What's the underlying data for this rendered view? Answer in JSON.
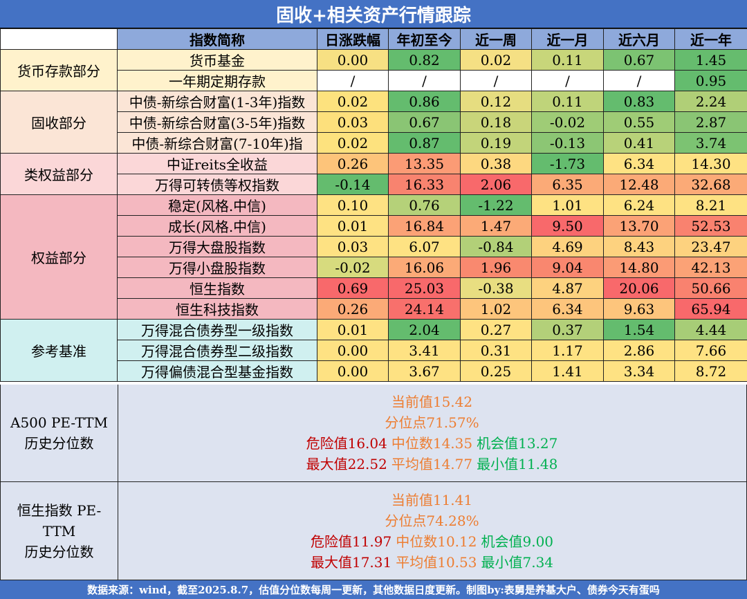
{
  "title": "固收+相关资产行情跟踪",
  "headers": [
    "",
    "指数简称",
    "日涨跌幅",
    "年初至今",
    "近一周",
    "近一月",
    "近六月",
    "近一年"
  ],
  "groups": [
    {
      "category": "货币存款部分",
      "category_bg": "#fff2cc",
      "name_bg": "#fff2cc",
      "rows": [
        {
          "name": "货币基金",
          "values": [
            "0.00",
            "0.82",
            "0.02",
            "0.11",
            "0.67",
            "1.45"
          ],
          "colors": [
            "#f7e083",
            "#64bc6e",
            "#f5e084",
            "#c8d67a",
            "#7cc372",
            "#66bc6e"
          ]
        },
        {
          "name": "一年期定期存款",
          "values": [
            "/",
            "/",
            "/",
            "/",
            "/",
            "0.95"
          ],
          "colors": [
            "#ffffff",
            "#ffffff",
            "#ffffff",
            "#ffffff",
            "#ffffff",
            "#64bc6e"
          ]
        }
      ]
    },
    {
      "category": "固收部分",
      "category_bg": "#fbe5d6",
      "name_bg": "#fbe5d6",
      "rows": [
        {
          "name": "中债-新综合财富(1-3年)指数",
          "values": [
            "0.02",
            "0.86",
            "0.12",
            "0.11",
            "0.83",
            "2.24"
          ],
          "colors": [
            "#fde27e",
            "#64bc6e",
            "#e6dd80",
            "#bfd47a",
            "#64bc6e",
            "#b0cf77"
          ]
        },
        {
          "name": "中债-新综合财富(3-5年)指数",
          "values": [
            "0.03",
            "0.67",
            "0.18",
            "-0.02",
            "0.55",
            "2.87"
          ],
          "colors": [
            "#fde07c",
            "#8ac574",
            "#c9d57a",
            "#9fcc76",
            "#9fcc76",
            "#8ac574"
          ]
        },
        {
          "name": "中债-新综合财富(7-10年)指",
          "values": [
            "0.02",
            "0.87",
            "0.19",
            "-0.13",
            "0.41",
            "3.74"
          ],
          "colors": [
            "#fde27e",
            "#64bc6e",
            "#c2d47a",
            "#8cc674",
            "#b8d279",
            "#7cc372"
          ]
        }
      ]
    },
    {
      "category": "类权益部分",
      "category_bg": "#fbd7d8",
      "name_bg": "#fbd7d8",
      "rows": [
        {
          "name": "中证reits全收益",
          "values": [
            "0.26",
            "13.35",
            "0.38",
            "-1.73",
            "6.34",
            "14.30"
          ],
          "colors": [
            "#fdc47a",
            "#fb9b75",
            "#fdd880",
            "#64bc6e",
            "#fee283",
            "#fee283"
          ]
        },
        {
          "name": "万得可转债等权指数",
          "values": [
            "-0.14",
            "16.33",
            "2.06",
            "6.35",
            "12.48",
            "32.68"
          ],
          "colors": [
            "#64bc6e",
            "#f8836f",
            "#f8696b",
            "#fbaa77",
            "#fbaa77",
            "#fbaa77"
          ]
        }
      ]
    },
    {
      "category": "权益部分",
      "category_bg": "#f4b8c0",
      "name_bg": "#f4b8c0",
      "rows": [
        {
          "name": "稳定(风格.中信)",
          "values": [
            "0.10",
            "0.76",
            "-1.22",
            "1.01",
            "6.24",
            "8.21"
          ],
          "colors": [
            "#fee283",
            "#b5d179",
            "#64bc6e",
            "#fee283",
            "#fee283",
            "#fee283"
          ]
        },
        {
          "name": "成长(风格.中信)",
          "values": [
            "0.01",
            "16.84",
            "1.47",
            "9.50",
            "13.70",
            "52.53"
          ],
          "colors": [
            "#fee283",
            "#fba276",
            "#fbaa77",
            "#f8696b",
            "#fba276",
            "#f9826f"
          ]
        },
        {
          "name": "万得大盘股指数",
          "values": [
            "0.03",
            "6.07",
            "-0.84",
            "4.69",
            "8.43",
            "23.47"
          ],
          "colors": [
            "#fee283",
            "#fee283",
            "#b2d078",
            "#fdd27f",
            "#fdd27f",
            "#fdd27f"
          ]
        },
        {
          "name": "万得小盘股指数",
          "values": [
            "-0.02",
            "16.06",
            "1.96",
            "9.04",
            "14.80",
            "42.13"
          ],
          "colors": [
            "#d7db7e",
            "#fbaa77",
            "#f9896f",
            "#f9876f",
            "#fb9b75",
            "#fba276"
          ]
        },
        {
          "name": "恒生指数",
          "values": [
            "0.69",
            "25.03",
            "-0.38",
            "4.87",
            "20.06",
            "50.66"
          ],
          "colors": [
            "#f8696b",
            "#f8696b",
            "#e8de81",
            "#fdd27f",
            "#f8696b",
            "#f9826f"
          ]
        },
        {
          "name": "恒生科技指数",
          "values": [
            "0.26",
            "24.14",
            "1.02",
            "6.34",
            "9.63",
            "65.94"
          ],
          "colors": [
            "#fbaa77",
            "#f8706c",
            "#fdc57c",
            "#fdc57c",
            "#fdc57c",
            "#f8696b"
          ]
        }
      ]
    },
    {
      "category": "参考基准",
      "category_bg": "#d0f0f0",
      "name_bg": "#d0f0f0",
      "rows": [
        {
          "name": "万得混合债券型一级指数",
          "values": [
            "0.01",
            "2.04",
            "0.27",
            "0.37",
            "1.54",
            "4.44"
          ],
          "colors": [
            "#fee283",
            "#64bc6e",
            "#fee283",
            "#b3d079",
            "#64bc6e",
            "#a7cd77"
          ]
        },
        {
          "name": "万得混合债券型二级指数",
          "values": [
            "0.00",
            "3.41",
            "0.31",
            "1.17",
            "2.86",
            "7.66"
          ],
          "colors": [
            "#fee283",
            "#fee283",
            "#fee283",
            "#fee283",
            "#fee283",
            "#fee283"
          ]
        },
        {
          "name": "万得偏债混合型基金指数",
          "values": [
            "0.00",
            "3.67",
            "0.25",
            "1.41",
            "3.34",
            "8.72"
          ],
          "colors": [
            "#fee283",
            "#fee283",
            "#fee283",
            "#fee283",
            "#fee283",
            "#fee283"
          ]
        }
      ]
    }
  ],
  "pe_blocks": [
    {
      "label_lines": [
        "A500 PE-TTM",
        "历史分位数"
      ],
      "current": "当前值15.42",
      "percentile": "分位点71.57%",
      "danger": "危险值16.04",
      "median": "中位数14.35",
      "opportunity": "机会值13.27",
      "max": "最大值22.52",
      "avg": "平均值14.77",
      "min": "最小值11.48"
    },
    {
      "label_lines": [
        "恒生指数 PE-",
        "TTM",
        "历史分位数"
      ],
      "current": "当前值11.41",
      "percentile": "分位点74.28%",
      "danger": "危险值11.97",
      "median": "中位数10.12",
      "opportunity": "机会值9.00",
      "max": "最大值17.31",
      "avg": "平均值10.53",
      "min": "最小值7.34"
    }
  ],
  "footer": "数据来源：wind，截至2025.8.7，估值分位数每周一更新，其他数据日度更新。制图by:表舅是养基大户、债券今天有蛋吗"
}
